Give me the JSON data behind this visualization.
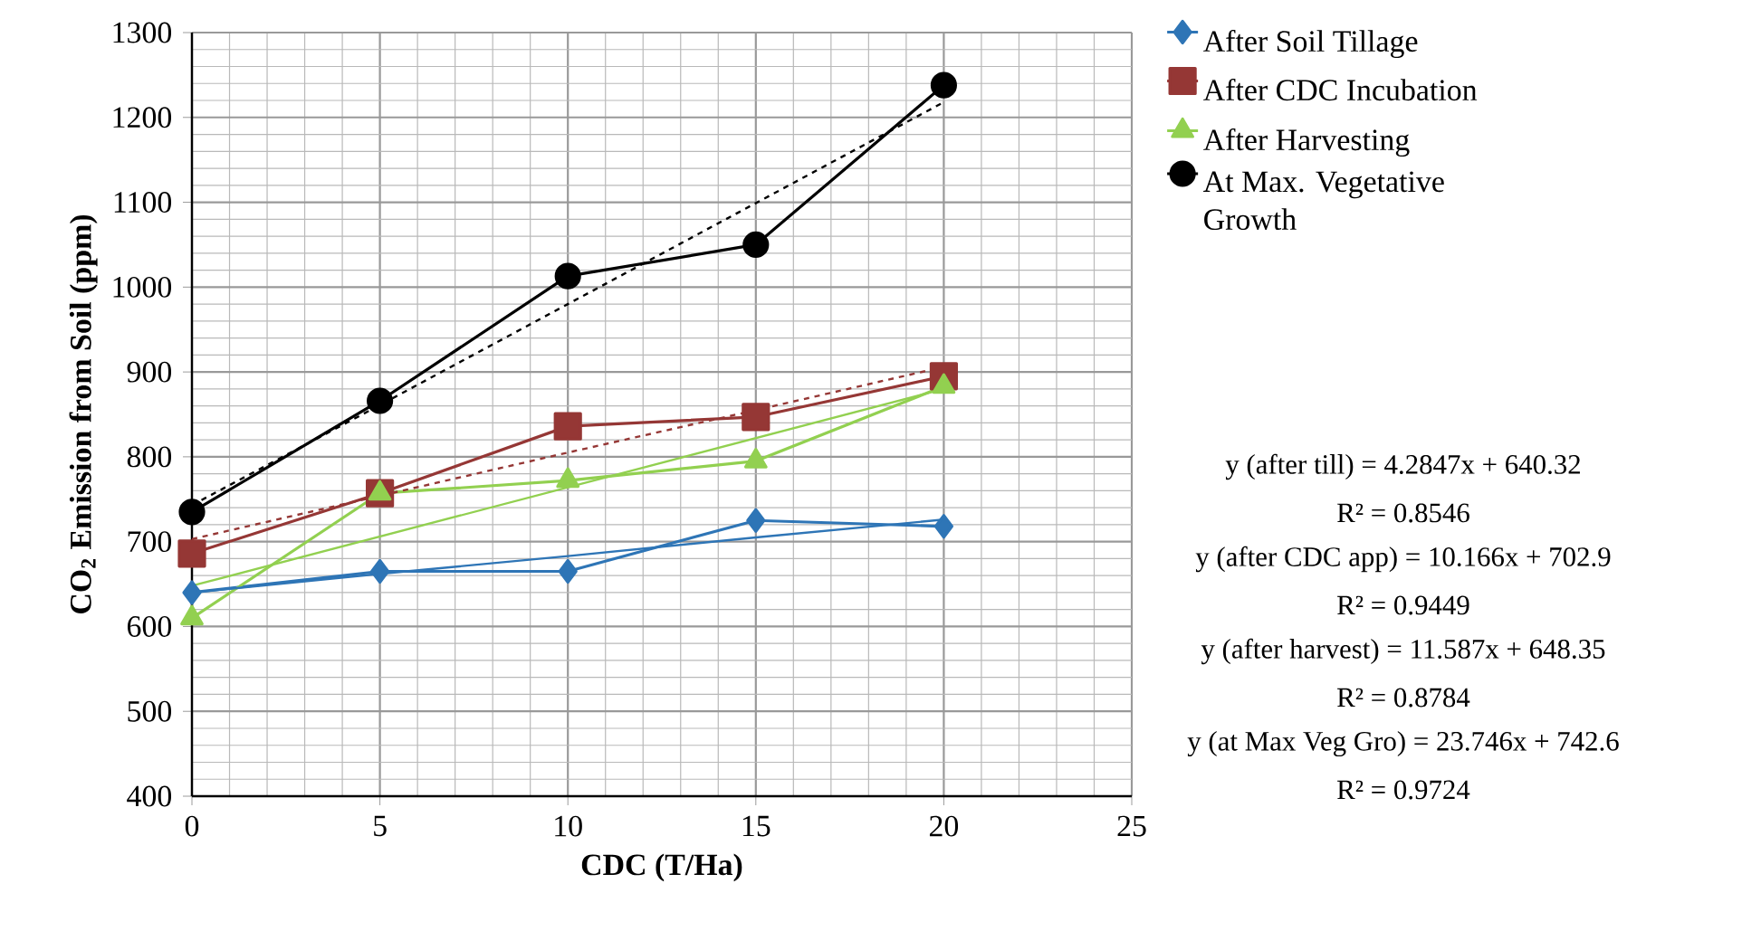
{
  "chart_data": {
    "type": "line",
    "xlabel": "CDC (T/Ha)",
    "ylabel": "CO$_{2}$ Emission from Soil (ppm)",
    "x": [
      0,
      5,
      10,
      15,
      20
    ],
    "series": [
      {
        "name": "After Soil Tillage",
        "color": "#2e75b6",
        "marker": "diamond",
        "line_style": "solid",
        "values": [
          640,
          665,
          665,
          725,
          718
        ]
      },
      {
        "name": "After CDC Incubation",
        "color": "#953735",
        "marker": "square",
        "line_style": "solid",
        "values": [
          686,
          757,
          836,
          847,
          895
        ]
      },
      {
        "name": "After Harvesting",
        "color": "#92d050",
        "marker": "triangle",
        "line_style": "solid",
        "values": [
          610,
          757,
          772,
          795,
          883
        ]
      },
      {
        "name": "At Max. Vegetative Growth",
        "color": "#000000",
        "marker": "circle",
        "line_style": "solid",
        "values": [
          735,
          866,
          1013,
          1050,
          1238
        ]
      },
      {
        "color": "#2e75b6",
        "marker": "none",
        "line_style": "solid",
        "values": [
          640,
          662,
          683,
          705,
          726
        ]
      },
      {
        "color": "#953735",
        "marker": "none",
        "line_style": "dashed",
        "values": [
          703,
          754,
          805,
          855,
          906
        ]
      },
      {
        "color": "#92d050",
        "marker": "none",
        "line_style": "solid",
        "values": [
          648,
          706,
          764,
          822,
          880
        ]
      },
      {
        "color": "#000000",
        "marker": "none",
        "line_style": "dashed",
        "values": [
          743,
          861,
          980,
          1099,
          1218
        ]
      }
    ],
    "xlim": [
      0,
      25
    ],
    "xticks": [
      0,
      5,
      10,
      15,
      20,
      25
    ],
    "ylim": [
      400,
      1300
    ],
    "yticks": [
      400,
      500,
      600,
      700,
      800,
      900,
      1000,
      1100,
      1200,
      1300
    ],
    "grid": true,
    "legend": "right",
    "annotations": [
      "y (after till) = 4.2847x + 640.32",
      "R² = 0.8546",
      "y (after CDC app) = 10.166x + 702.9",
      "R² = 0.9449",
      "y (after harvest) = 11.587x + 648.35",
      "R² = 0.8784",
      "y (at Max Veg Gro) = 23.746x + 742.6",
      "R² = 0.9724"
    ]
  }
}
